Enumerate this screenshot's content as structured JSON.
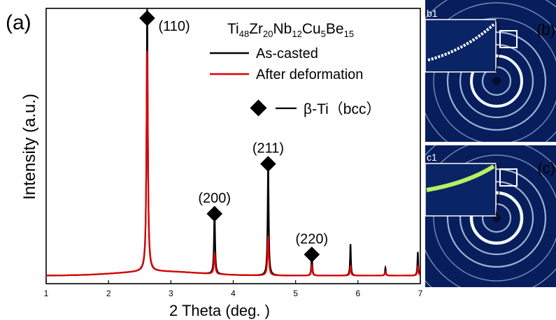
{
  "figure": {
    "panel_a_label": "(a)",
    "panel_b_label": "(b)",
    "panel_c_label": "(c)",
    "inset_b_label": "b1",
    "inset_c_label": "c1"
  },
  "chart_data": {
    "type": "line",
    "title": "Ti48Zr20Nb12Cu5Be15",
    "title_parts": [
      {
        "text": "Ti",
        "sub": false
      },
      {
        "text": "48",
        "sub": true
      },
      {
        "text": "Zr",
        "sub": false
      },
      {
        "text": "20",
        "sub": true
      },
      {
        "text": "Nb",
        "sub": false
      },
      {
        "text": "12",
        "sub": true
      },
      {
        "text": "Cu",
        "sub": false
      },
      {
        "text": "5",
        "sub": true
      },
      {
        "text": "Be",
        "sub": false
      },
      {
        "text": "15",
        "sub": true
      }
    ],
    "xlabel": "2 Theta (deg. )",
    "ylabel": "Intensity (a.u.)",
    "xlim": [
      1,
      7
    ],
    "ylim": [
      0,
      100
    ],
    "xticks": [
      1,
      2,
      3,
      4,
      5,
      6,
      7
    ],
    "grid": false,
    "legend_placement": "top-right",
    "baseline": 2,
    "series": [
      {
        "name": "As-casted",
        "color": "#000000",
        "peaks": [
          {
            "x": 2.62,
            "y": 100,
            "w": 0.012
          },
          {
            "x": 3.7,
            "y": 25,
            "w": 0.01
          },
          {
            "x": 4.56,
            "y": 44,
            "w": 0.01
          },
          {
            "x": 5.26,
            "y": 9.5,
            "w": 0.008
          },
          {
            "x": 5.88,
            "y": 12,
            "w": 0.008
          },
          {
            "x": 6.44,
            "y": 3,
            "w": 0.008
          },
          {
            "x": 6.96,
            "y": 9,
            "w": 0.008
          }
        ]
      },
      {
        "name": "After deformation",
        "color": "#e00000",
        "peaks": [
          {
            "x": 2.62,
            "y": 84,
            "w": 0.014
          },
          {
            "x": 3.7,
            "y": 8,
            "w": 0.012
          },
          {
            "x": 4.56,
            "y": 15,
            "w": 0.012
          },
          {
            "x": 5.26,
            "y": 4,
            "w": 0.01
          },
          {
            "x": 5.88,
            "y": 3.5,
            "w": 0.01
          },
          {
            "x": 6.44,
            "y": 1.5,
            "w": 0.01
          },
          {
            "x": 6.96,
            "y": 3.5,
            "w": 0.01
          }
        ]
      }
    ],
    "annotations": [
      {
        "label": "(110)",
        "x": 2.62,
        "y": 100,
        "marker": "diamond"
      },
      {
        "label": "(200)",
        "x": 3.7,
        "y": 25,
        "marker": "diamond"
      },
      {
        "label": "(211)",
        "x": 4.56,
        "y": 44,
        "marker": "diamond"
      },
      {
        "label": "(220)",
        "x": 5.26,
        "y": 9.5,
        "marker": "diamond"
      }
    ],
    "marker_legend": "β-Ti（bcc）"
  },
  "colors": {
    "diffraction_background": "#081e5c",
    "ring_color": "#cfe6ff",
    "strong_ring_color": "#f2fbff",
    "inset_ring_b": "#ffffff",
    "inset_ring_c": "#b8f060"
  }
}
